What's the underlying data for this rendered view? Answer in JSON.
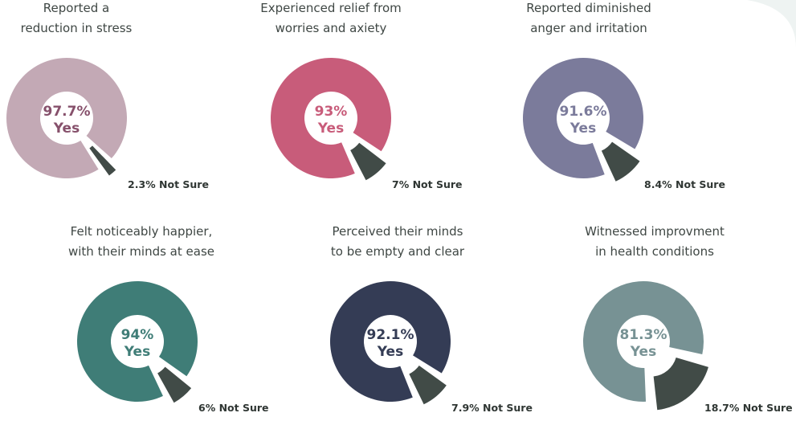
{
  "colors": {
    "not_sure": "#414b47",
    "title": "#3f4744",
    "corner": "#eef3f2"
  },
  "chart_data": [
    {
      "type": "pie",
      "title_lines": [
        "Reported a",
        "reduction in stress"
      ],
      "categories": [
        "Yes",
        "Not Sure"
      ],
      "values": [
        97.7,
        2.3
      ],
      "center_label": "97.7%",
      "center_sub": "Yes",
      "not_sure_label": "2.3%  Not Sure",
      "color": "#c3a9b5",
      "text_color": "#86506b"
    },
    {
      "type": "pie",
      "title_lines": [
        "Experienced relief from",
        "worries and axiety"
      ],
      "categories": [
        "Yes",
        "Not Sure"
      ],
      "values": [
        93,
        7
      ],
      "center_label": "93%",
      "center_sub": "Yes",
      "not_sure_label": "7% Not Sure",
      "color": "#c85c7a",
      "text_color": "#c85c7a"
    },
    {
      "type": "pie",
      "title_lines": [
        "Reported diminished",
        "anger and irritation"
      ],
      "categories": [
        "Yes",
        "Not Sure"
      ],
      "values": [
        91.6,
        8.4
      ],
      "center_label": "91.6%",
      "center_sub": "Yes",
      "not_sure_label": "8.4% Not Sure",
      "color": "#7b7b9b",
      "text_color": "#7b7b9b"
    },
    {
      "type": "pie",
      "title_lines": [
        "Felt noticeably happier,",
        "with their minds at ease"
      ],
      "categories": [
        "Yes",
        "Not Sure"
      ],
      "values": [
        94,
        6
      ],
      "center_label": "94%",
      "center_sub": "Yes",
      "not_sure_label": "6% Not Sure",
      "color": "#3f7d77",
      "text_color": "#3f7d77"
    },
    {
      "type": "pie",
      "title_lines": [
        "Perceived their minds",
        "to be empty and clear"
      ],
      "categories": [
        "Yes",
        "Not Sure"
      ],
      "values": [
        92.1,
        7.9
      ],
      "center_label": "92.1%",
      "center_sub": "Yes",
      "not_sure_label": "7.9% Not Sure",
      "color": "#343c55",
      "text_color": "#343c55"
    },
    {
      "type": "pie",
      "title_lines": [
        "Witnessed improvment",
        "in health conditions"
      ],
      "categories": [
        "Yes",
        "Not Sure"
      ],
      "values": [
        81.3,
        18.7
      ],
      "center_label": "81.3%",
      "center_sub": "Yes",
      "not_sure_label": "18.7% Not Sure",
      "color": "#779294",
      "text_color": "#779294"
    }
  ]
}
